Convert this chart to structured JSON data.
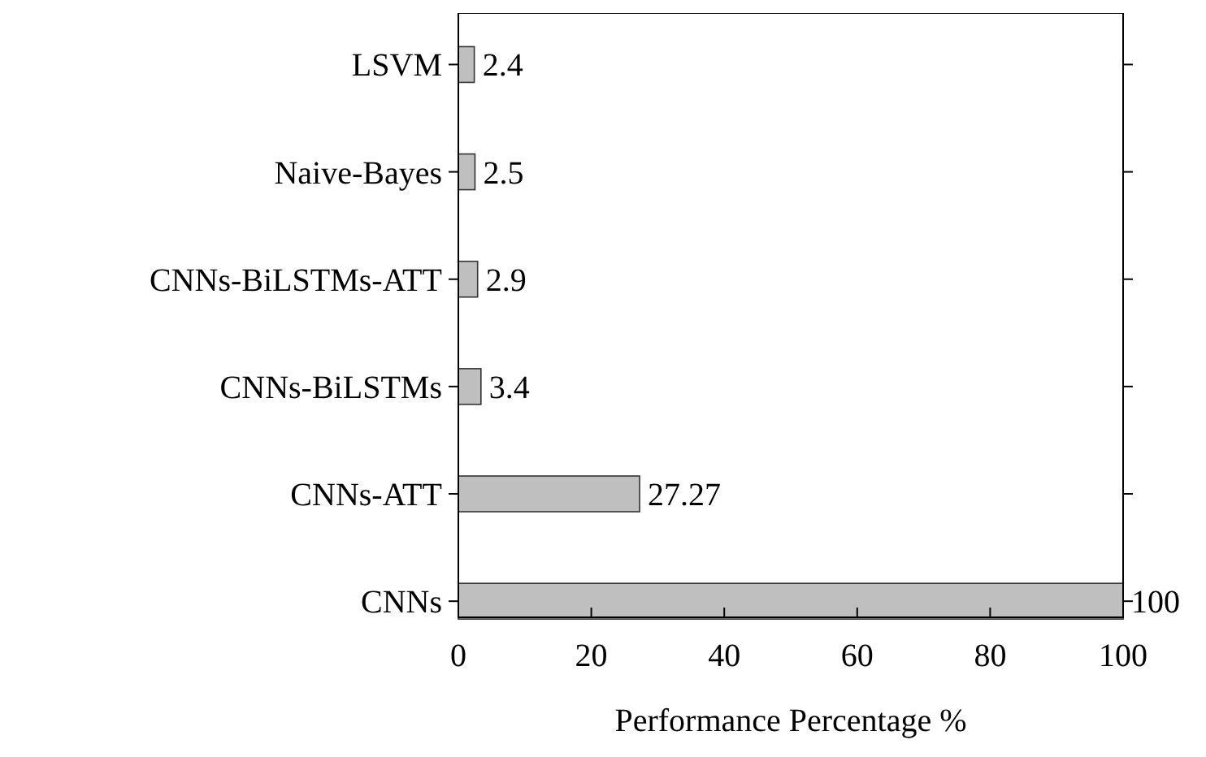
{
  "chart_data": {
    "type": "bar",
    "orientation": "horizontal",
    "categories": [
      "LSVM",
      "Naive-Bayes",
      "CNNs-BiLSTMs-ATT",
      "CNNs-BiLSTMs",
      "CNNs-ATT",
      "CNNs"
    ],
    "values": [
      2.4,
      2.5,
      2.9,
      3.4,
      27.27,
      100
    ],
    "color": "#bfbfbf",
    "data_labels": true,
    "xlim": [
      0,
      100
    ],
    "xticks": [
      0,
      20,
      40,
      60,
      80,
      100
    ],
    "xlabel": "Performance Percentage %"
  }
}
